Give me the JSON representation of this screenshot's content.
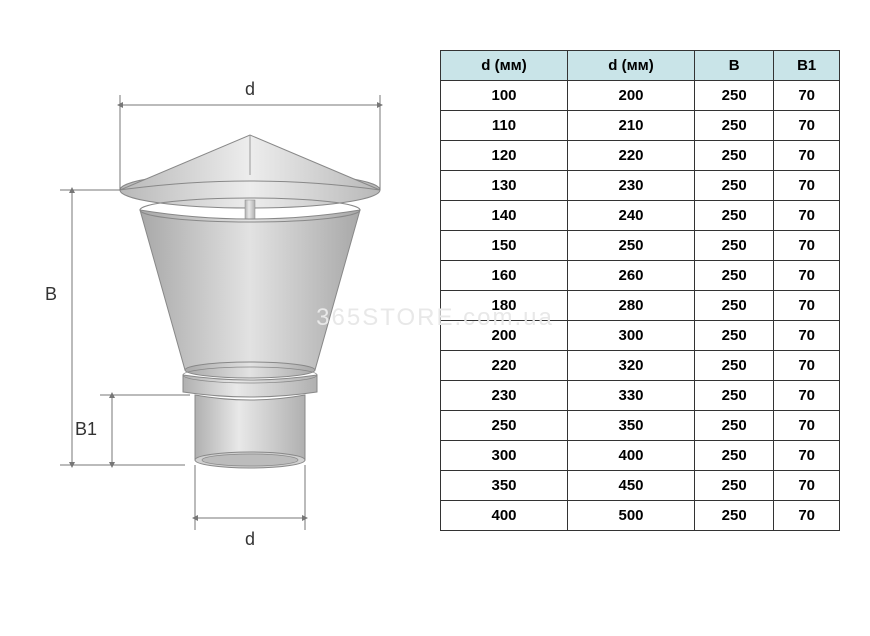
{
  "watermark": "365STORE.com.ua",
  "diagram": {
    "labels": {
      "top_d": "d",
      "left_B": "B",
      "left_B1": "B1",
      "bottom_d": "d"
    },
    "colors": {
      "cap_light": "#e6e6e6",
      "cap_mid": "#cfcfcf",
      "cap_dark": "#b5b5b5",
      "skirt_light": "#d8d8d8",
      "skirt_dark": "#b0b0b0",
      "pipe_light": "#e0e0e0",
      "pipe_dark": "#bfbfbf",
      "stroke": "#888888",
      "dim_line": "#777777"
    }
  },
  "table": {
    "columns": [
      "d (мм)",
      "d (мм)",
      "B",
      "B1"
    ],
    "rows": [
      [
        "100",
        "200",
        "250",
        "70"
      ],
      [
        "110",
        "210",
        "250",
        "70"
      ],
      [
        "120",
        "220",
        "250",
        "70"
      ],
      [
        "130",
        "230",
        "250",
        "70"
      ],
      [
        "140",
        "240",
        "250",
        "70"
      ],
      [
        "150",
        "250",
        "250",
        "70"
      ],
      [
        "160",
        "260",
        "250",
        "70"
      ],
      [
        "180",
        "280",
        "250",
        "70"
      ],
      [
        "200",
        "300",
        "250",
        "70"
      ],
      [
        "220",
        "320",
        "250",
        "70"
      ],
      [
        "230",
        "330",
        "250",
        "70"
      ],
      [
        "250",
        "350",
        "250",
        "70"
      ],
      [
        "300",
        "400",
        "250",
        "70"
      ],
      [
        "350",
        "450",
        "250",
        "70"
      ],
      [
        "400",
        "500",
        "250",
        "70"
      ]
    ],
    "header_bg": "#c9e4e8",
    "border_color": "#333333",
    "font_size": 15
  }
}
